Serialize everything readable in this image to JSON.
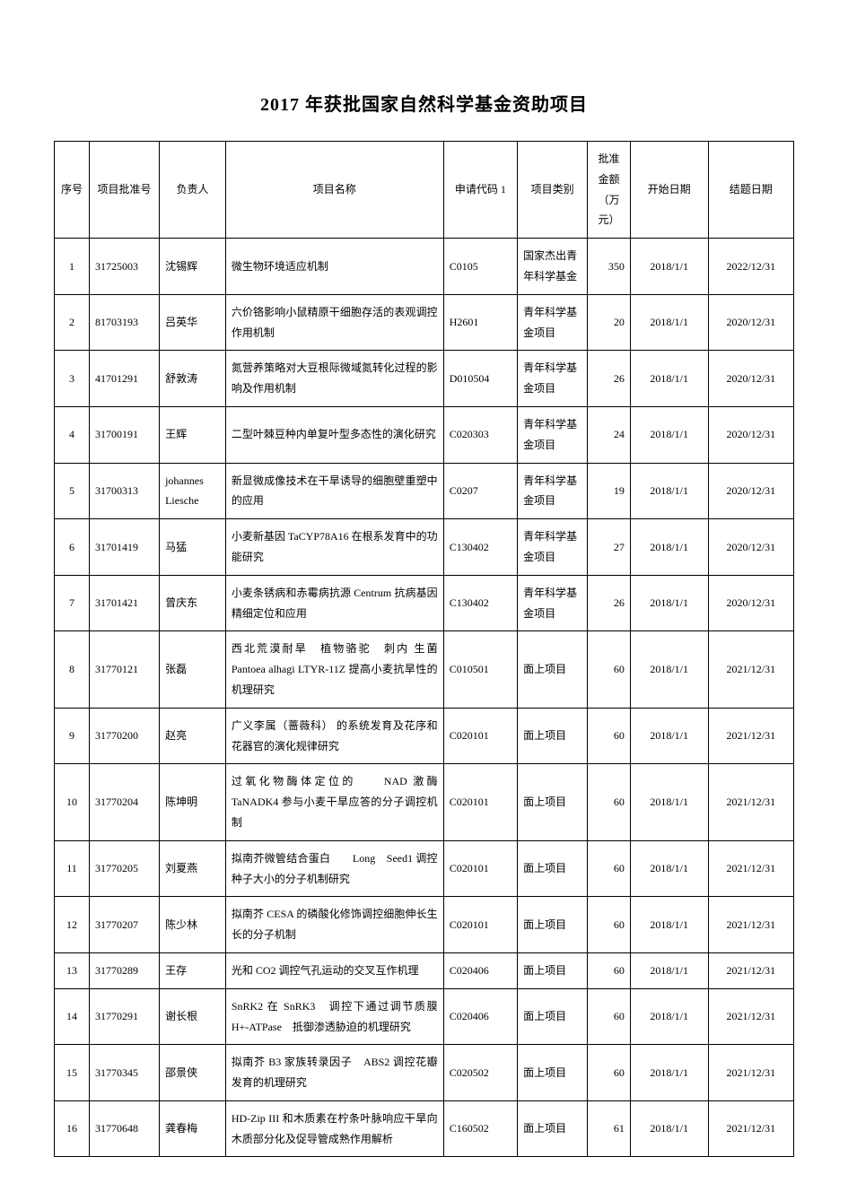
{
  "title": "2017 年获批国家自然科学基金资助项目",
  "columns": [
    "序号",
    "项目批准号",
    "负责人",
    "项目名称",
    "申请代码 1",
    "项目类别",
    "批准金额（万元）",
    "开始日期",
    "结题日期"
  ],
  "rows": [
    {
      "seq": "1",
      "num": "31725003",
      "person": "沈锡辉",
      "name": "微生物环境适应机制",
      "code": "C0105",
      "type": "国家杰出青年科学基金",
      "amt": "350",
      "start": "2018/1/1",
      "end": "2022/12/31"
    },
    {
      "seq": "2",
      "num": "81703193",
      "person": "吕英华",
      "name": "六价铬影响小鼠精原干细胞存活的表观调控作用机制",
      "code": "H2601",
      "type": "青年科学基金项目",
      "amt": "20",
      "start": "2018/1/1",
      "end": "2020/12/31"
    },
    {
      "seq": "3",
      "num": "41701291",
      "person": "舒敦涛",
      "name": "氮营养策略对大豆根际微域氮转化过程的影响及作用机制",
      "code": "D010504",
      "type": "青年科学基金项目",
      "amt": "26",
      "start": "2018/1/1",
      "end": "2020/12/31"
    },
    {
      "seq": "4",
      "num": "31700191",
      "person": "王辉",
      "name": "二型叶棘豆种内单复叶型多态性的演化研究",
      "code": "C020303",
      "type": "青年科学基金项目",
      "amt": "24",
      "start": "2018/1/1",
      "end": "2020/12/31"
    },
    {
      "seq": "5",
      "num": "31700313",
      "person": "johannes Liesche",
      "name": "新显微成像技术在干旱诱导的细胞壁重塑中的应用",
      "code": "C0207",
      "type": "青年科学基金项目",
      "amt": "19",
      "start": "2018/1/1",
      "end": "2020/12/31"
    },
    {
      "seq": "6",
      "num": "31701419",
      "person": "马猛",
      "name": "小麦新基因 TaCYP78A16 在根系发育中的功能研究",
      "code": "C130402",
      "type": "青年科学基金项目",
      "amt": "27",
      "start": "2018/1/1",
      "end": "2020/12/31"
    },
    {
      "seq": "7",
      "num": "31701421",
      "person": "曾庆东",
      "name": "小麦条锈病和赤霉病抗源 Centrum 抗病基因精细定位和应用",
      "code": "C130402",
      "type": "青年科学基金项目",
      "amt": "26",
      "start": "2018/1/1",
      "end": "2020/12/31"
    },
    {
      "seq": "8",
      "num": "31770121",
      "person": "张磊",
      "name": "西北荒漠耐旱　植物骆驼　刺内 生菌 Pantoea alhagi LTYR-11Z 提高小麦抗旱性的机理研究",
      "code": "C010501",
      "type": "面上项目",
      "amt": "60",
      "start": "2018/1/1",
      "end": "2021/12/31"
    },
    {
      "seq": "9",
      "num": "31770200",
      "person": "赵亮",
      "name": "广义李属（蔷薇科） 的系统发育及花序和花器官的演化规律研究",
      "code": "C020101",
      "type": "面上项目",
      "amt": "60",
      "start": "2018/1/1",
      "end": "2021/12/31"
    },
    {
      "seq": "10",
      "num": "31770204",
      "person": "陈坤明",
      "name": "过氧化物酶体定位的　　NAD 激酶 TaNADK4 参与小麦干旱应答的分子调控机制",
      "code": "C020101",
      "type": "面上项目",
      "amt": "60",
      "start": "2018/1/1",
      "end": "2021/12/31"
    },
    {
      "seq": "11",
      "num": "31770205",
      "person": "刘夏燕",
      "name": "拟南芥微管结合蛋白　　Long　Seed1 调控种子大小的分子机制研究",
      "code": "C020101",
      "type": "面上项目",
      "amt": "60",
      "start": "2018/1/1",
      "end": "2021/12/31"
    },
    {
      "seq": "12",
      "num": "31770207",
      "person": "陈少林",
      "name": "拟南芥 CESA 的磷酸化修饰调控细胞伸长生长的分子机制",
      "code": "C020101",
      "type": "面上项目",
      "amt": "60",
      "start": "2018/1/1",
      "end": "2021/12/31"
    },
    {
      "seq": "13",
      "num": "31770289",
      "person": "王存",
      "name": "光和 CO2 调控气孔运动的交叉互作机理",
      "code": "C020406",
      "type": "面上项目",
      "amt": "60",
      "start": "2018/1/1",
      "end": "2021/12/31"
    },
    {
      "seq": "14",
      "num": "31770291",
      "person": "谢长根",
      "name": "SnRK2 在 SnRK3　调控下通过调节质膜 H+-ATPase　抵御渗透胁迫的机理研究",
      "code": "C020406",
      "type": "面上项目",
      "amt": "60",
      "start": "2018/1/1",
      "end": "2021/12/31"
    },
    {
      "seq": "15",
      "num": "31770345",
      "person": "邵景侠",
      "name": "拟南芥 B3 家族转录因子　ABS2 调控花瓣发育的机理研究",
      "code": "C020502",
      "type": "面上项目",
      "amt": "60",
      "start": "2018/1/1",
      "end": "2021/12/31"
    },
    {
      "seq": "16",
      "num": "31770648",
      "person": "龚春梅",
      "name": "HD-Zip III 和木质素在柠条叶脉响应干旱向木质部分化及促导管成熟作用解析",
      "code": "C160502",
      "type": "面上项目",
      "amt": "61",
      "start": "2018/1/1",
      "end": "2021/12/31"
    }
  ]
}
